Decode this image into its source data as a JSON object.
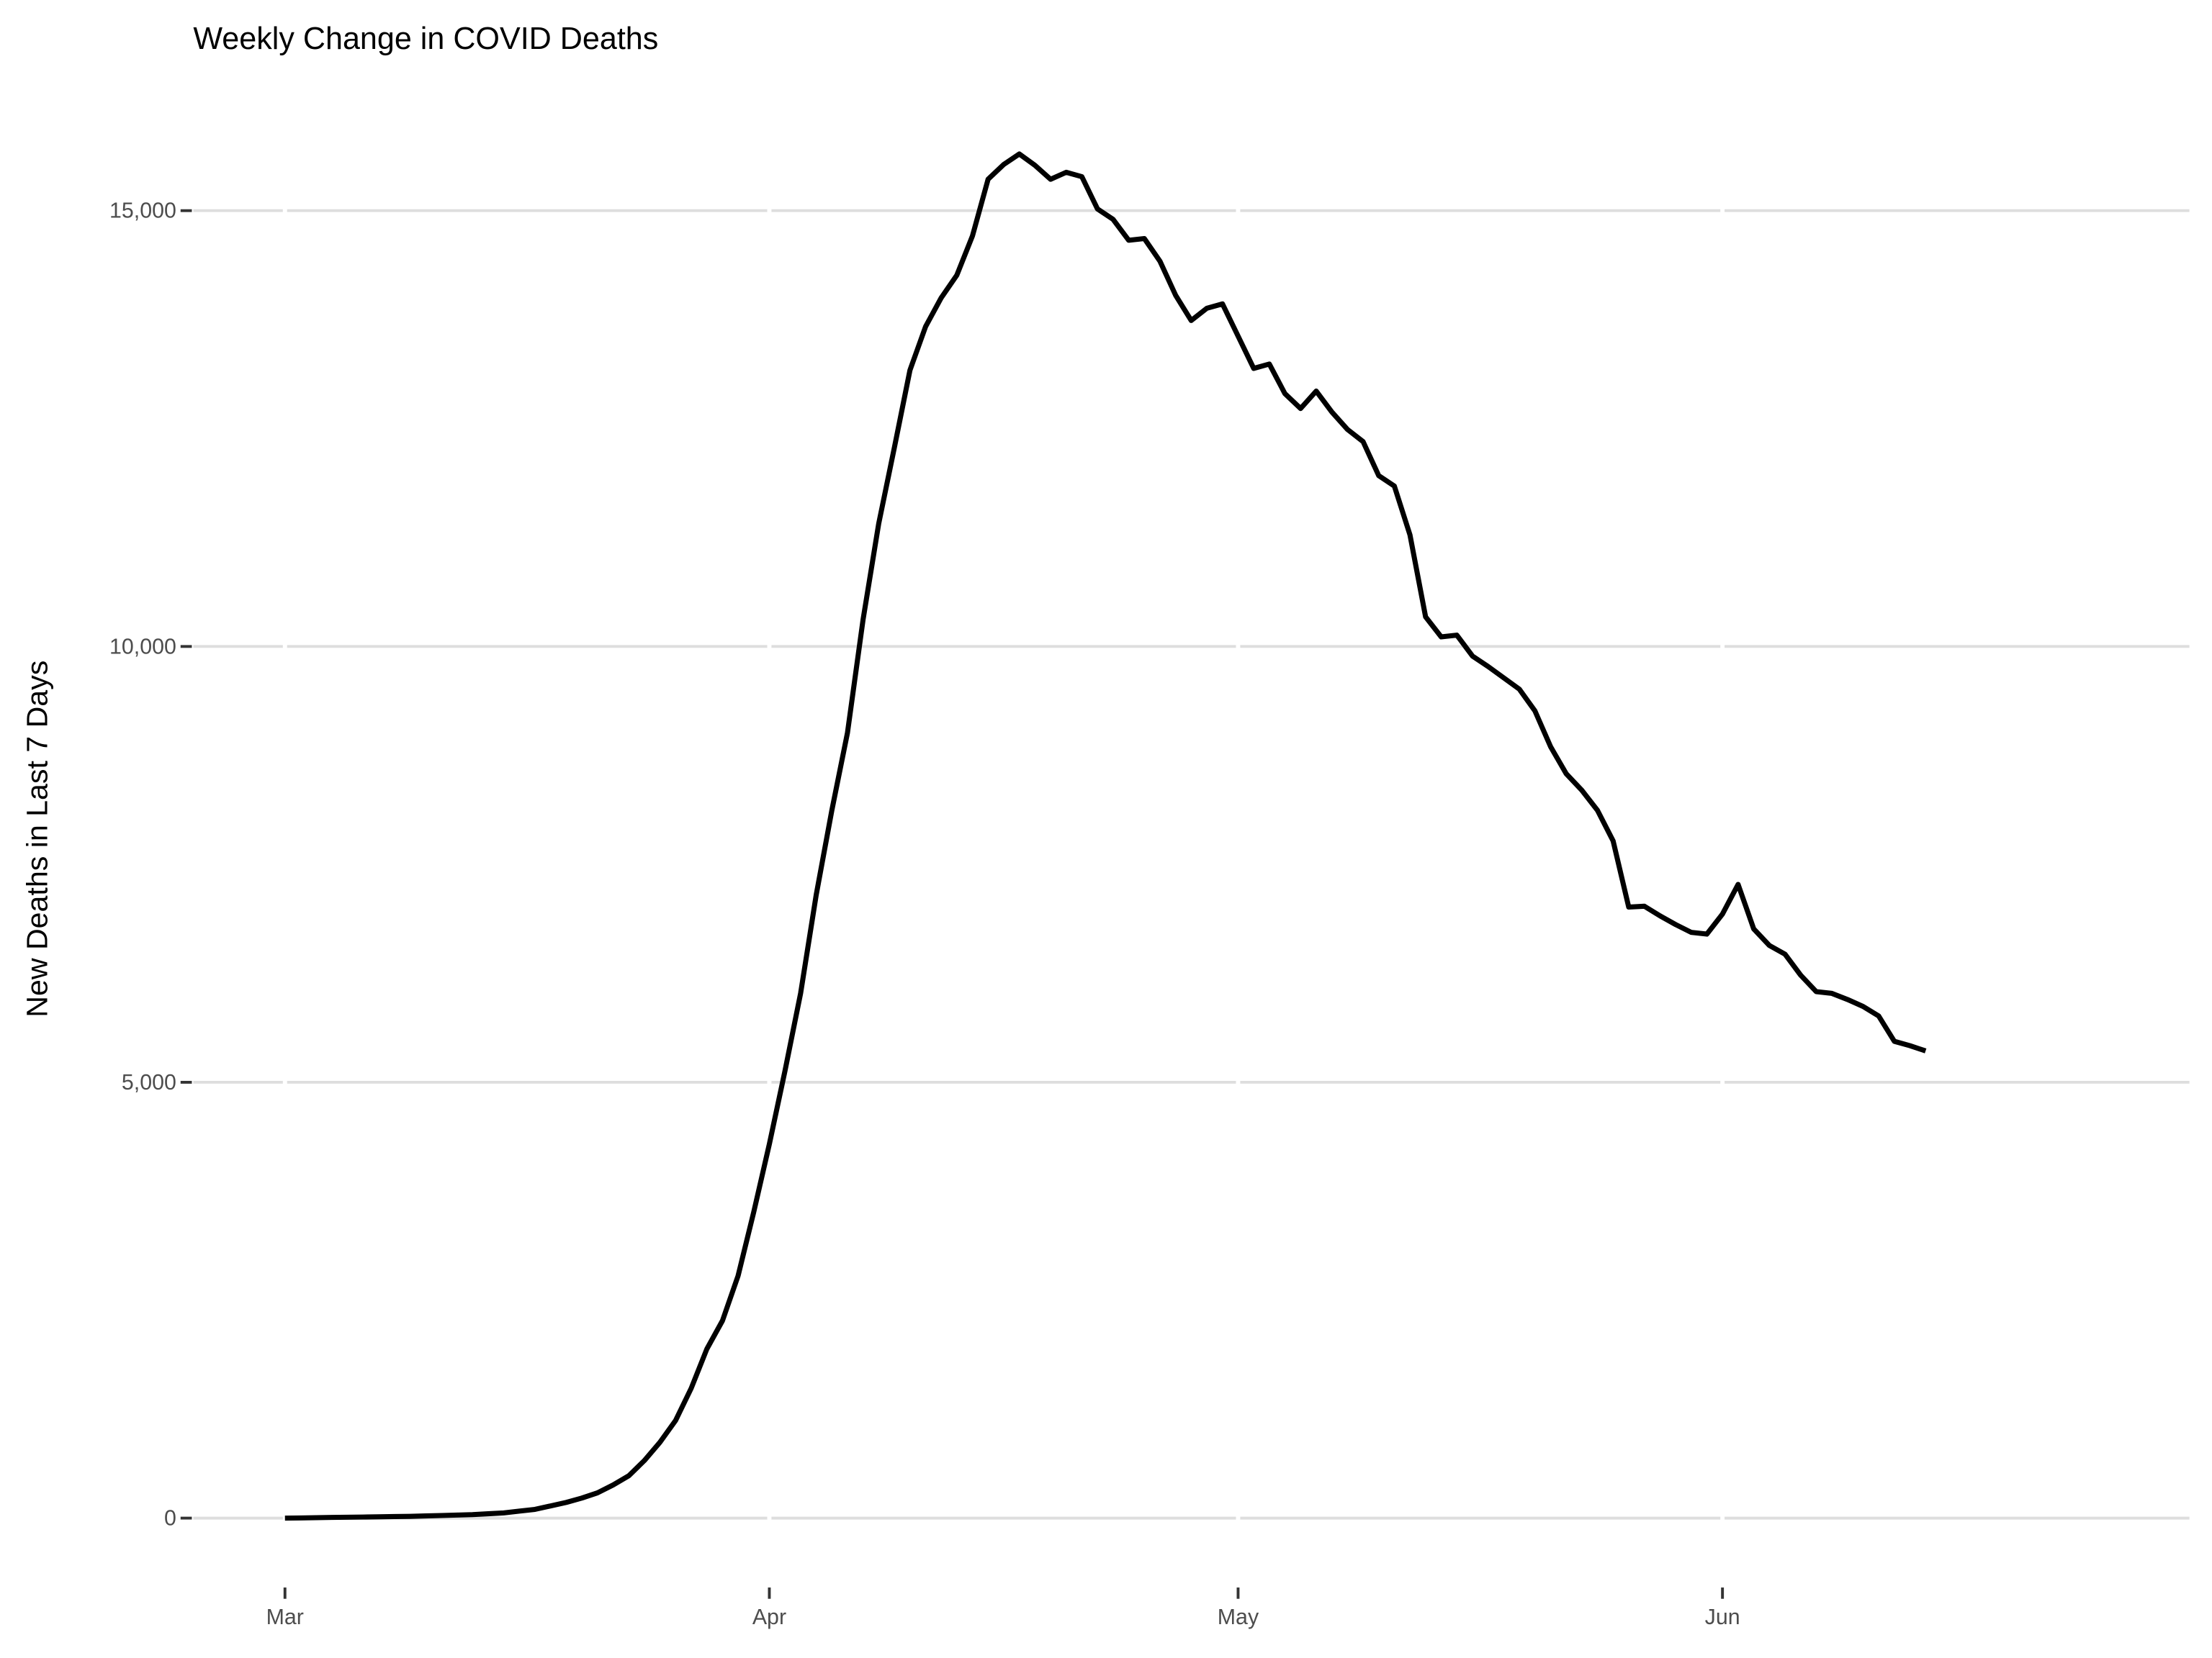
{
  "chart_data": {
    "type": "line",
    "title": "Weekly Change in COVID Deaths",
    "y_label": "New Deaths in Last 7 Days",
    "categories": [
      "Mar",
      null,
      null,
      null,
      null,
      null,
      null,
      null,
      null,
      null,
      null,
      null,
      null,
      null,
      null,
      null,
      null,
      null,
      null,
      null,
      null,
      null,
      null,
      null,
      null,
      null,
      null,
      null,
      null,
      null,
      null,
      "Apr",
      null,
      null,
      null,
      null,
      null,
      null,
      null,
      null,
      null,
      null,
      null,
      null,
      null,
      null,
      null,
      null,
      null,
      null,
      null,
      null,
      null,
      null,
      null,
      null,
      null,
      null,
      null,
      null,
      null,
      "May",
      null,
      null,
      null,
      null,
      null,
      null,
      null,
      null,
      null,
      null,
      null,
      null,
      null,
      null,
      null,
      null,
      null,
      null,
      null,
      null,
      null,
      null,
      null,
      null,
      null,
      null,
      null,
      null,
      null,
      null,
      "Jun",
      null,
      null,
      null,
      null,
      null,
      null,
      null,
      null,
      null,
      null,
      null,
      null,
      null,
      null,
      null,
      null,
      null,
      null,
      null,
      null,
      null,
      null,
      null,
      null,
      null,
      null,
      null,
      null,
      null
    ],
    "values": [
      0,
      2,
      5,
      8,
      10,
      12,
      15,
      18,
      20,
      25,
      30,
      35,
      40,
      50,
      60,
      80,
      100,
      140,
      180,
      230,
      290,
      380,
      485,
      660,
      870,
      1120,
      1490,
      1940,
      2265,
      2780,
      3510,
      4290,
      5130,
      6020,
      7150,
      8120,
      9010,
      10310,
      11410,
      12280,
      13170,
      13670,
      14000,
      14260,
      14710,
      15360,
      15530,
      15650,
      15520,
      15360,
      15440,
      15390,
      15020,
      14900,
      14660,
      14680,
      14420,
      14030,
      13740,
      13880,
      13930,
      13560,
      13190,
      13240,
      12900,
      12730,
      12930,
      12690,
      12490,
      12350,
      11960,
      11840,
      11280,
      10340,
      10110,
      10130,
      9890,
      9770,
      9640,
      9510,
      9260,
      8850,
      8540,
      8350,
      8120,
      7770,
      7010,
      7020,
      6910,
      6810,
      6720,
      6700,
      6930,
      7270,
      6760,
      6570,
      6470,
      6230,
      6040,
      6020,
      5950,
      5870,
      5760,
      5470,
      5420,
      5360,
      null,
      null,
      null,
      null,
      null,
      null,
      null,
      null,
      null,
      null,
      null,
      null,
      null,
      null,
      null,
      null
    ],
    "color": "#000000",
    "ylim": [
      -780,
      16430
    ],
    "yticks": [
      0,
      {
        "value": 5000,
        "label": "5,000"
      },
      {
        "value": 10000,
        "label": "10,000"
      },
      {
        "value": 15000,
        "label": "15,000"
      }
    ],
    "grid": true
  }
}
